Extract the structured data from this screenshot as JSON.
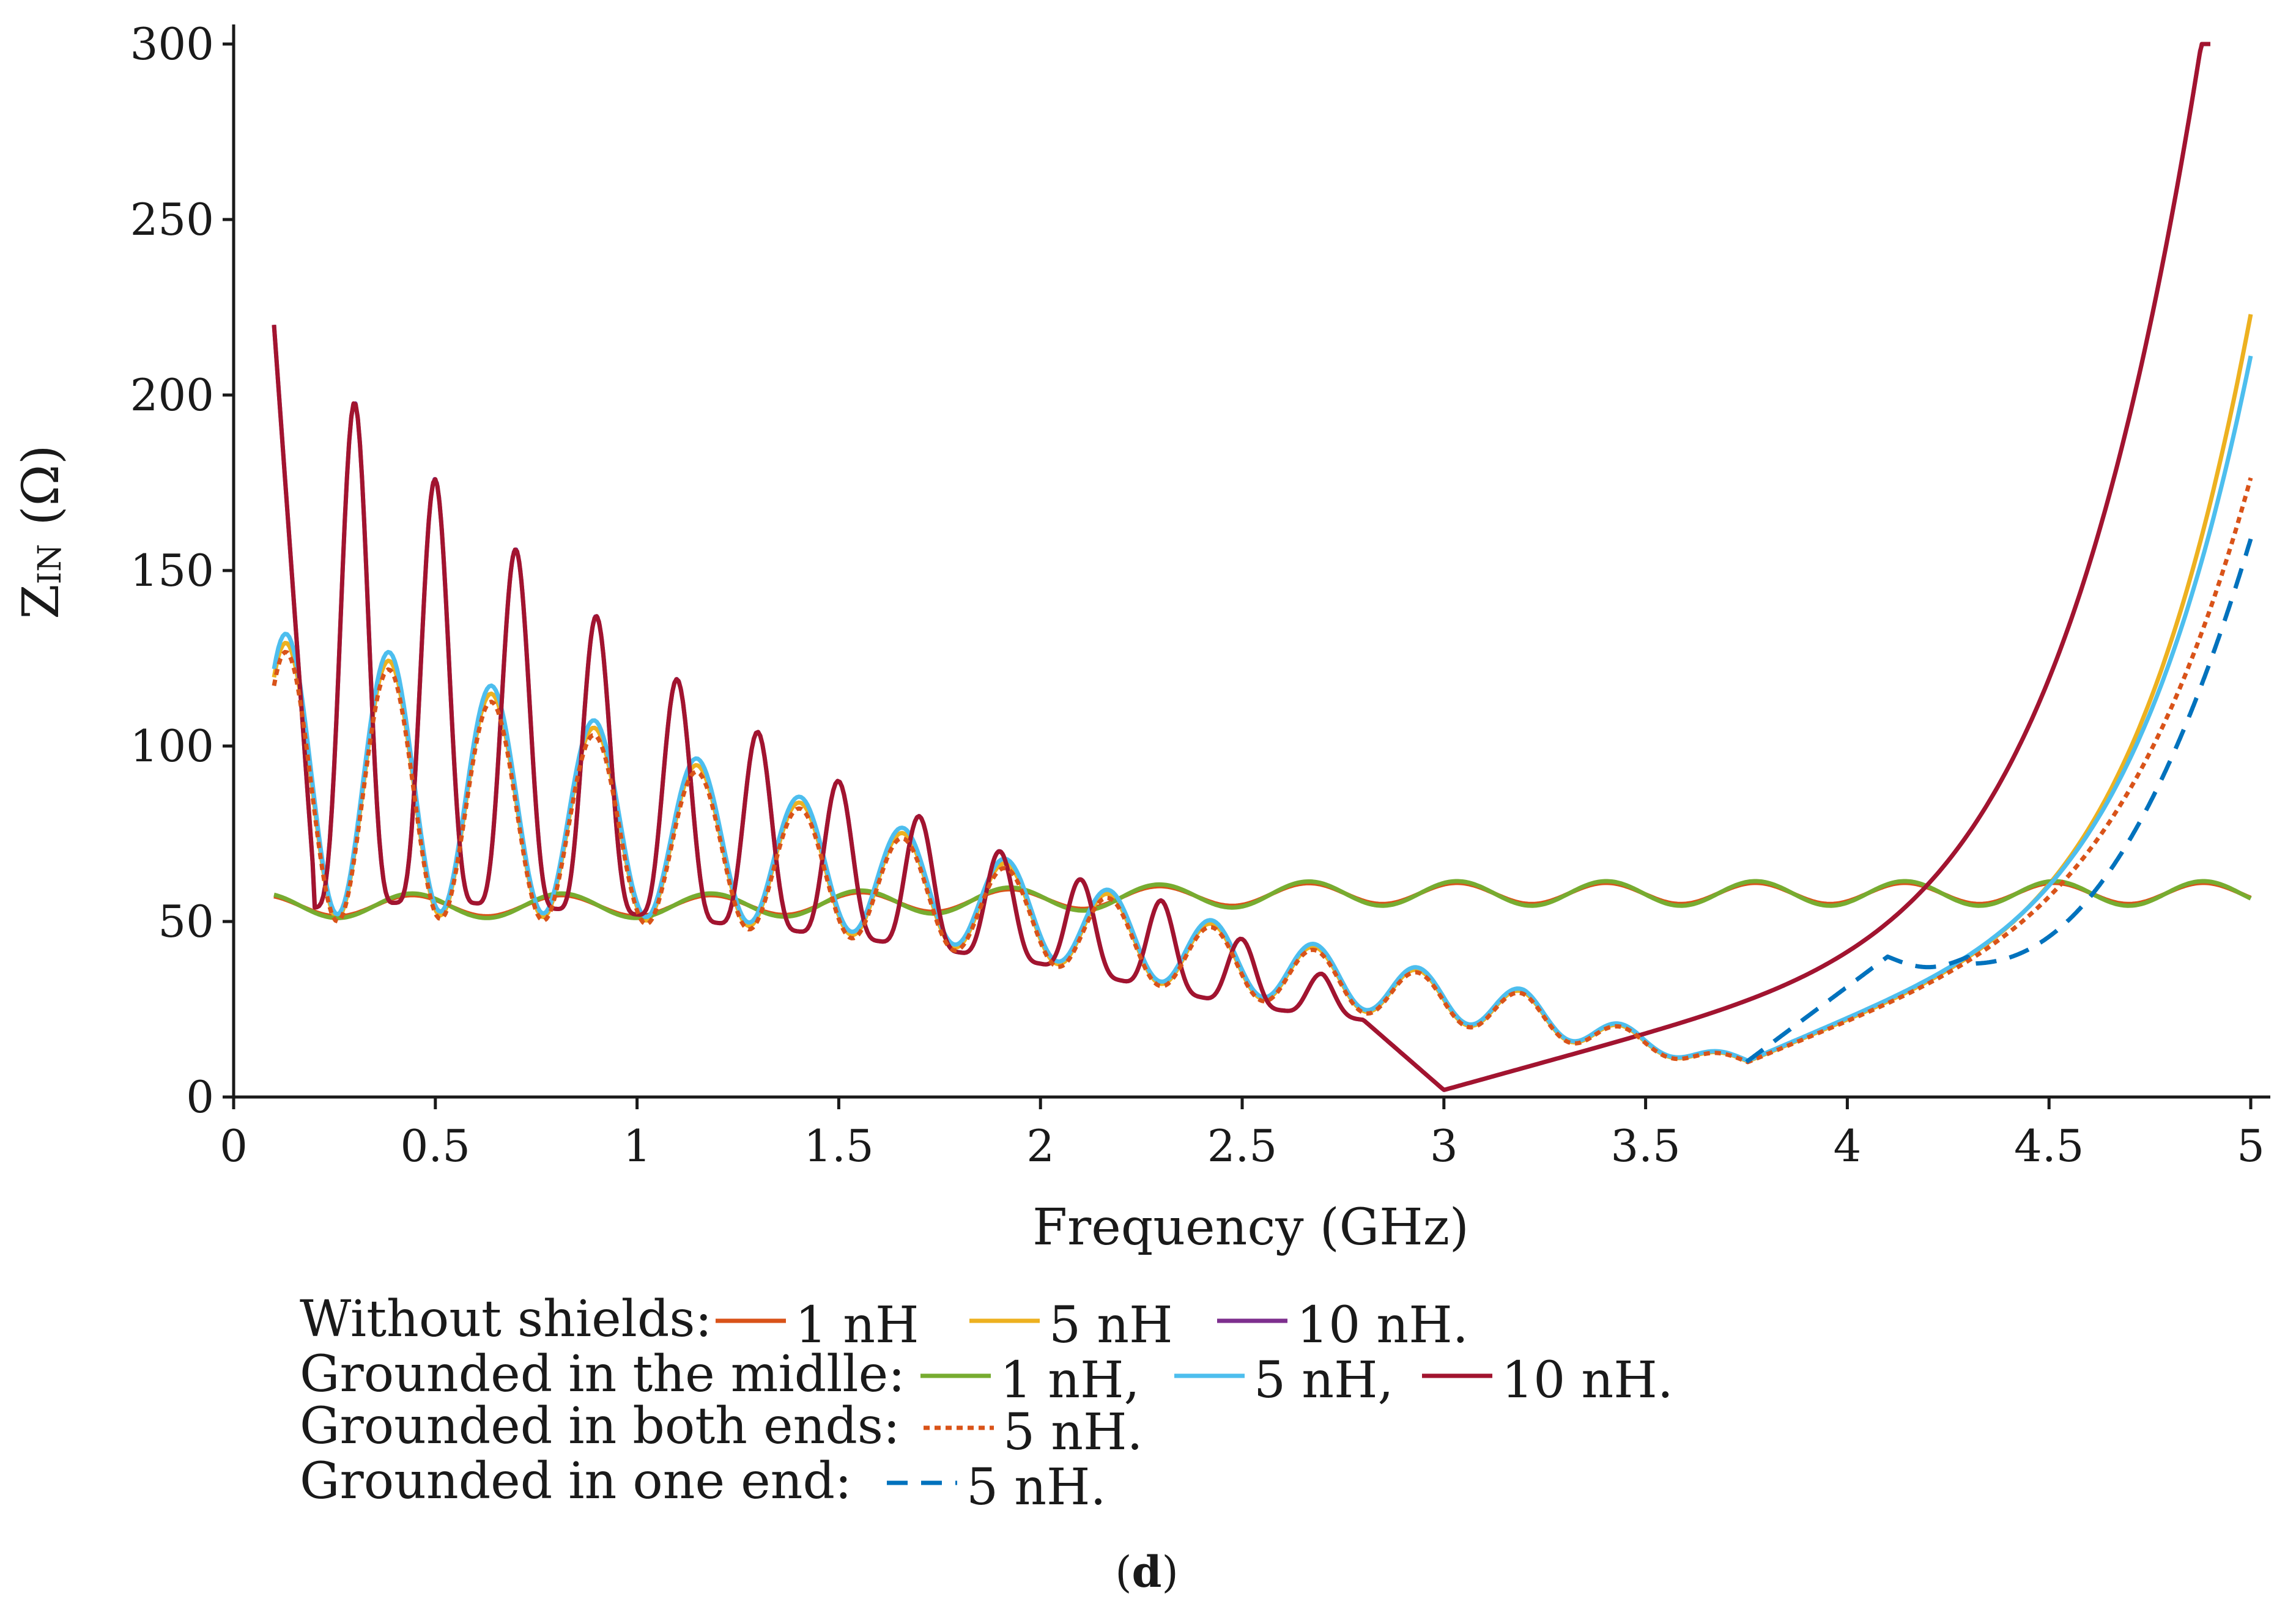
{
  "chart_data": {
    "type": "line",
    "title": "",
    "xlabel": "Frequency (GHz)",
    "ylabel_main": "Z",
    "ylabel_sub": "IN",
    "ylabel_unit": "(Ω)",
    "xlim": [
      0,
      5
    ],
    "ylim": [
      0,
      300
    ],
    "x_ticks": [
      0,
      0.5,
      1,
      1.5,
      2,
      2.5,
      3,
      3.5,
      4,
      4.5,
      5
    ],
    "x_tick_labels": [
      "0",
      "0.5",
      "1",
      "1.5",
      "2",
      "2.5",
      "3",
      "3.5",
      "4",
      "4.5",
      "5"
    ],
    "y_ticks": [
      0,
      50,
      100,
      150,
      200,
      250,
      300
    ],
    "y_tick_labels": [
      "0",
      "50",
      "100",
      "150",
      "200",
      "250",
      "300"
    ],
    "grid": false,
    "caption_bold": "d",
    "caption_open": "(",
    "caption_close": ")",
    "legend": {
      "placement": "bottom",
      "rows": [
        {
          "label": "Without shields:",
          "entries": [
            {
              "series": "ws1",
              "text": "1 nH"
            },
            {
              "series": "ws5",
              "text": "5 nH"
            },
            {
              "series": "ws10",
              "text": "10 nH."
            }
          ]
        },
        {
          "label": "Grounded in the midlle:",
          "entries": [
            {
              "series": "gm1",
              "text": "1 nH,"
            },
            {
              "series": "gm5",
              "text": "5 nH,"
            },
            {
              "series": "gm10",
              "text": "10 nH."
            }
          ]
        },
        {
          "label": "Grounded in both ends:",
          "entries": [
            {
              "series": "gb5",
              "text": "5 nH."
            }
          ]
        },
        {
          "label": "Grounded in one end:",
          "entries": [
            {
              "series": "go5",
              "text": "5 nH."
            }
          ]
        }
      ]
    },
    "series": [
      {
        "id": "ws1",
        "name": "Without shields: 1 nH",
        "color": "#d95319",
        "dash": "solid",
        "x_range": [
          0.1,
          5
        ],
        "model": "flat",
        "params": {
          "amp": 3.0,
          "period": 0.37,
          "phase": 0.35
        }
      },
      {
        "id": "ws5",
        "name": "Without shields: 5 nH",
        "color": "#edb120",
        "dash": "solid",
        "x_range": [
          0.1,
          5
        ],
        "model": "mid",
        "params": {
          "tail_end": 223,
          "tail_k": 4.6,
          "scale": 1.0
        }
      },
      {
        "id": "ws10",
        "name": "Without shields: 10 nH",
        "color": "#7e2f8e",
        "dash": "solid",
        "x_range": [
          0.1,
          4.88
        ],
        "model": "high",
        "params": {
          "tail_end": 300,
          "scale": 1.0
        }
      },
      {
        "id": "gm1",
        "name": "Grounded in the midlle: 1 nH",
        "color": "#77ac30",
        "dash": "solid",
        "x_range": [
          0.1,
          5
        ],
        "model": "flat",
        "params": {
          "amp": 3.5,
          "period": 0.37,
          "phase": 0.35
        }
      },
      {
        "id": "gm5",
        "name": "Grounded in the midlle: 5 nH",
        "color": "#4dbeee",
        "dash": "solid",
        "x_range": [
          0.1,
          5
        ],
        "model": "mid",
        "params": {
          "tail_end": 207,
          "tail_k": 4.6,
          "scale": 1.02
        }
      },
      {
        "id": "gm10",
        "name": "Grounded in the midlle: 10 nH",
        "color": "#a2142f",
        "dash": "solid",
        "x_range": [
          0.1,
          4.9
        ],
        "model": "high",
        "params": {
          "tail_end": 300,
          "scale": 1.0
        }
      },
      {
        "id": "gb5",
        "name": "Grounded in both ends: 5 nH",
        "color": "#d95319",
        "dash": "dotted",
        "x_range": [
          0.1,
          5
        ],
        "model": "mid",
        "params": {
          "tail_end": 180,
          "tail_k": 4.3,
          "scale": 0.98
        }
      },
      {
        "id": "go5",
        "name": "Grounded in one end: 5 nH",
        "color": "#0072bd",
        "dash": "dashed",
        "x_range": [
          3.75,
          5
        ],
        "model": "oneend",
        "params": {
          "tail_end": 159
        }
      }
    ]
  }
}
